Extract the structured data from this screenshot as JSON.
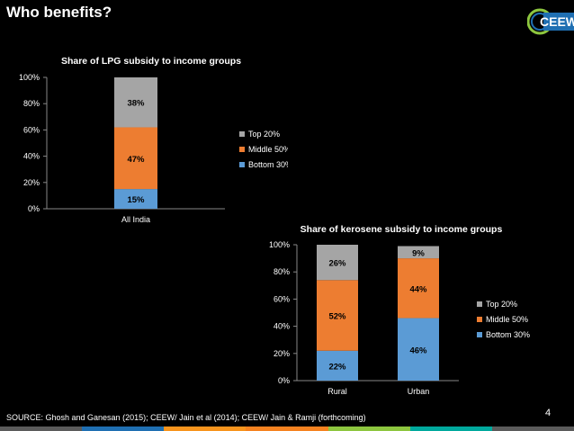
{
  "slide": {
    "title": "Who benefits?",
    "page_number": "4",
    "source": "SOURCE: Ghosh and Ganesan (2015); CEEW/ Jain et al (2014); CEEW/ Jain & Ramji (forthcoming)",
    "logo_text": "CEEW",
    "bottom_bar_colors": [
      "#5b5b5b",
      "#1f6fb2",
      "#f7941d",
      "#f58220",
      "#8dc63f",
      "#00a99d",
      "#5b5b5b"
    ]
  },
  "chart_data": [
    {
      "type": "bar",
      "stacked": true,
      "title": "Share of LPG subsidy to income groups",
      "categories": [
        "All India"
      ],
      "series": [
        {
          "name": "Bottom 30%",
          "values": [
            15
          ],
          "labels": [
            "15%"
          ],
          "color": "#5b9bd5"
        },
        {
          "name": "Middle 50%",
          "values": [
            47
          ],
          "labels": [
            "47%"
          ],
          "color": "#ed7d31"
        },
        {
          "name": "Top 20%",
          "values": [
            38
          ],
          "labels": [
            "38%"
          ],
          "color": "#a5a5a5"
        }
      ],
      "yticks": [
        "0%",
        "20%",
        "40%",
        "60%",
        "80%",
        "100%"
      ],
      "ylim": [
        0,
        100
      ],
      "legend_position": "right",
      "legend_order": [
        "Top 20%",
        "Middle 50%",
        "Bottom 30%"
      ]
    },
    {
      "type": "bar",
      "stacked": true,
      "title": "Share of kerosene subsidy to income groups",
      "categories": [
        "Rural",
        "Urban"
      ],
      "series": [
        {
          "name": "Bottom 30%",
          "values": [
            22,
            46
          ],
          "labels": [
            "22%",
            "46%"
          ],
          "color": "#5b9bd5"
        },
        {
          "name": "Middle 50%",
          "values": [
            52,
            44
          ],
          "labels": [
            "52%",
            "44%"
          ],
          "color": "#ed7d31"
        },
        {
          "name": "Top 20%",
          "values": [
            26,
            9
          ],
          "labels": [
            "26%",
            "9%"
          ],
          "color": "#a5a5a5"
        }
      ],
      "yticks": [
        "0%",
        "20%",
        "40%",
        "60%",
        "80%",
        "100%"
      ],
      "ylim": [
        0,
        100
      ],
      "legend_position": "right",
      "legend_order": [
        "Top 20%",
        "Middle 50%",
        "Bottom 30%"
      ]
    }
  ]
}
